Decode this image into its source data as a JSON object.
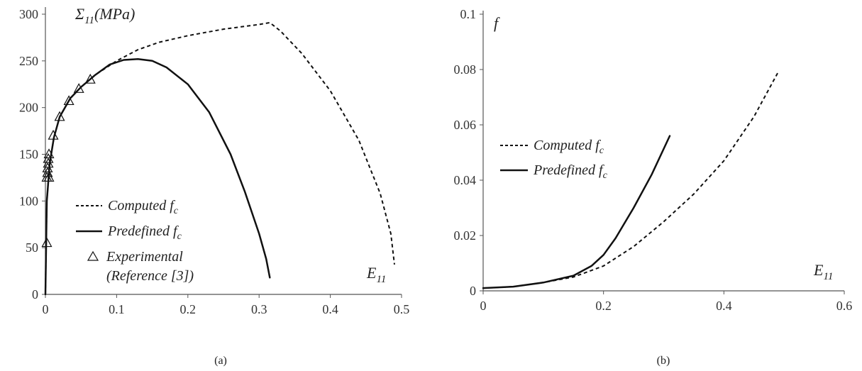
{
  "chart_data": [
    {
      "type": "line",
      "panel_label": "(a)",
      "xlabel_main": "E",
      "xlabel_sub": "11",
      "ylabel_main": "Σ",
      "ylabel_sub": "11",
      "ylabel_unit": "(MPa)",
      "xlim": [
        0,
        0.5
      ],
      "ylim": [
        0,
        300
      ],
      "xticks": [
        0,
        0.1,
        0.2,
        0.3,
        0.4,
        0.5
      ],
      "yticks": [
        0,
        50,
        100,
        150,
        200,
        250,
        300
      ],
      "legend": {
        "position": "center",
        "entries": [
          {
            "text": "Computed f",
            "sub": "c",
            "style": "dashed"
          },
          {
            "text": "Predefined f",
            "sub": "c",
            "style": "solid"
          },
          {
            "text": "Experimental",
            "text2": "(Reference [3])",
            "style": "triangle"
          }
        ]
      },
      "series": [
        {
          "name": "Computed f",
          "style": "dashed",
          "x": [
            0,
            0.002,
            0.006,
            0.012,
            0.02,
            0.035,
            0.05,
            0.07,
            0.1,
            0.13,
            0.16,
            0.2,
            0.25,
            0.3,
            0.315,
            0.33,
            0.36,
            0.4,
            0.44,
            0.47,
            0.485,
            0.49
          ],
          "y": [
            0,
            100,
            140,
            168,
            190,
            210,
            222,
            235,
            250,
            262,
            270,
            277,
            284,
            289,
            291,
            282,
            258,
            218,
            165,
            108,
            65,
            32
          ]
        },
        {
          "name": "Predefined f",
          "style": "solid",
          "x": [
            0,
            0.002,
            0.006,
            0.012,
            0.02,
            0.035,
            0.05,
            0.07,
            0.09,
            0.11,
            0.13,
            0.15,
            0.17,
            0.2,
            0.23,
            0.26,
            0.28,
            0.3,
            0.31,
            0.315
          ],
          "y": [
            0,
            100,
            140,
            168,
            190,
            210,
            222,
            235,
            246,
            251,
            252,
            250,
            243,
            225,
            195,
            150,
            110,
            65,
            38,
            18
          ]
        },
        {
          "name": "Experimental",
          "style": "triangle",
          "x": [
            0.002,
            0.002,
            0.003,
            0.003,
            0.004,
            0.004,
            0.005,
            0.005,
            0.011,
            0.02,
            0.033,
            0.047,
            0.063
          ],
          "y": [
            55,
            125,
            130,
            135,
            140,
            145,
            150,
            125,
            170,
            190,
            207,
            220,
            230
          ]
        }
      ]
    },
    {
      "type": "line",
      "panel_label": "(b)",
      "xlabel_main": "E",
      "xlabel_sub": "11",
      "ylabel_main": "f",
      "xlim": [
        0,
        0.6
      ],
      "ylim": [
        0,
        0.1
      ],
      "xticks": [
        0,
        0.2,
        0.4,
        0.6
      ],
      "yticks": [
        0,
        0.02,
        0.04,
        0.06,
        0.08,
        0.1
      ],
      "legend": {
        "position": "left",
        "entries": [
          {
            "text": "Computed f",
            "sub": "c",
            "style": "dashed"
          },
          {
            "text": "Predefined f",
            "sub": "c",
            "style": "solid"
          }
        ]
      },
      "series": [
        {
          "name": "Computed f",
          "style": "dashed",
          "x": [
            0,
            0.05,
            0.1,
            0.15,
            0.2,
            0.25,
            0.3,
            0.35,
            0.4,
            0.45,
            0.49
          ],
          "y": [
            0.001,
            0.0015,
            0.003,
            0.005,
            0.009,
            0.016,
            0.025,
            0.035,
            0.047,
            0.063,
            0.079
          ]
        },
        {
          "name": "Predefined f",
          "style": "solid",
          "x": [
            0,
            0.05,
            0.1,
            0.15,
            0.18,
            0.2,
            0.22,
            0.25,
            0.28,
            0.31
          ],
          "y": [
            0.001,
            0.0015,
            0.003,
            0.0055,
            0.009,
            0.013,
            0.019,
            0.03,
            0.042,
            0.056
          ]
        }
      ]
    }
  ]
}
